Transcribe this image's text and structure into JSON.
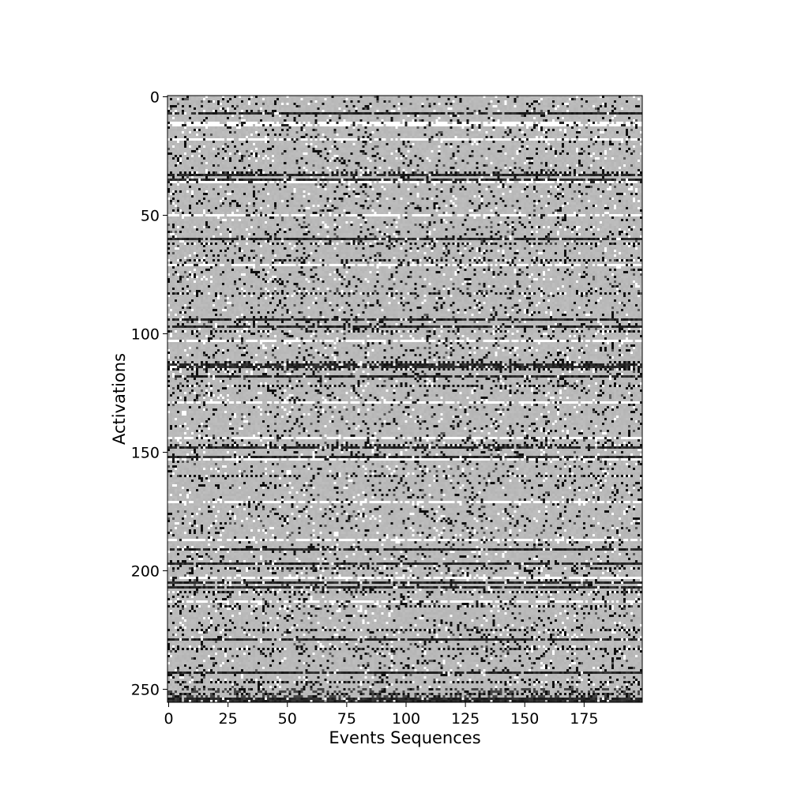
{
  "chart_data": {
    "type": "heatmap",
    "title": "",
    "xlabel": "Events Sequences",
    "ylabel": "Activations",
    "n_cols": 200,
    "n_rows": 256,
    "xlim": [
      0,
      200
    ],
    "ylim": [
      256,
      0
    ],
    "xticks": [
      0,
      25,
      50,
      75,
      100,
      125,
      150,
      175
    ],
    "yticks": [
      0,
      50,
      100,
      150,
      200,
      250
    ],
    "colormap": "gray",
    "value_range": [
      0,
      1
    ],
    "background_value": 0.73,
    "solid_rows": {
      "dark": [
        7,
        33,
        35,
        60,
        94,
        97,
        113,
        114,
        118,
        148,
        152,
        191,
        197,
        205,
        207,
        229,
        243,
        254,
        255
      ],
      "white": [
        11,
        12,
        18,
        36,
        50,
        71,
        103,
        129,
        144,
        153,
        171,
        187,
        203,
        213
      ]
    },
    "dense_rows": [
      32,
      62,
      69,
      83,
      99,
      112,
      115,
      122,
      147,
      160,
      199,
      209,
      215,
      225,
      233,
      247,
      252
    ]
  },
  "colors": {
    "background_gray": "#b9b9b9",
    "dark": "#111111",
    "white": "#ffffff"
  }
}
